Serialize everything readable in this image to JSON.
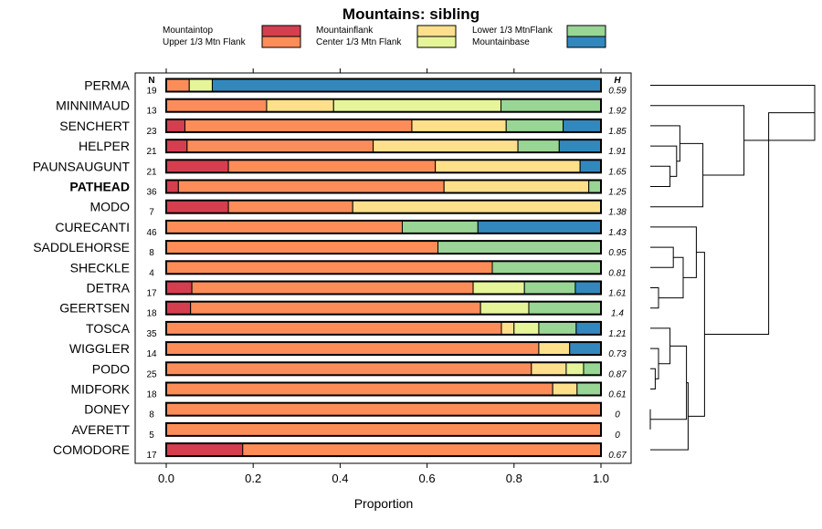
{
  "chart_data": {
    "type": "bar",
    "subtype": "stacked-horizontal-proportion",
    "title": "Mountains: sibling",
    "xlabel": "Proportion",
    "ylabel": "",
    "xlim": [
      0,
      1
    ],
    "xticks": [
      0.0,
      0.2,
      0.4,
      0.6,
      0.8,
      1.0
    ],
    "xtick_labels": [
      "0.0",
      "0.2",
      "0.4",
      "0.6",
      "0.8",
      "1.0"
    ],
    "n_header": "N",
    "h_header": "H",
    "legend": [
      {
        "name": "Mountaintop",
        "color": "#D53E4F"
      },
      {
        "name": "Upper 1/3 Mtn Flank",
        "color": "#FC8D59"
      },
      {
        "name": "Mountainflank",
        "color": "#FEE08B"
      },
      {
        "name": "Center 1/3 Mtn Flank",
        "color": "#E6F598"
      },
      {
        "name": "Lower 1/3 MtnFlank",
        "color": "#99D594"
      },
      {
        "name": "Mountainbase",
        "color": "#3288BD"
      }
    ],
    "categories": [
      "PERMA",
      "MINNIMAUD",
      "SENCHERT",
      "HELPER",
      "PAUNSAUGUNT",
      "PATHEAD",
      "MODO",
      "CURECANTI",
      "SADDLEHORSE",
      "SHECKLE",
      "DETRA",
      "GEERTSEN",
      "TOSCA",
      "WIGGLER",
      "PODO",
      "MIDFORK",
      "DONEY",
      "AVERETT",
      "COMODORE"
    ],
    "highlight": "PATHEAD",
    "n": [
      19,
      13,
      23,
      21,
      21,
      36,
      7,
      46,
      8,
      4,
      17,
      18,
      35,
      14,
      25,
      18,
      8,
      5,
      17
    ],
    "h": [
      "0.59",
      "1.92",
      "1.85",
      "1.91",
      "1.65",
      "1.25",
      "1.38",
      "1.43",
      "0.95",
      "0.81",
      "1.61",
      "1.4",
      "1.21",
      "0.73",
      "0.87",
      "0.61",
      "0",
      "0",
      "0.67"
    ],
    "series": [
      {
        "name": "Mountaintop",
        "values": [
          0,
          0,
          0.043,
          0.048,
          0.143,
          0.028,
          0.143,
          0,
          0,
          0,
          0.059,
          0.056,
          0,
          0,
          0,
          0,
          0,
          0,
          0.176
        ]
      },
      {
        "name": "Upper 1/3 Mtn Flank",
        "values": [
          0.053,
          0.231,
          0.522,
          0.428,
          0.476,
          0.611,
          0.286,
          0.543,
          0.625,
          0.75,
          0.647,
          0.667,
          0.771,
          0.857,
          0.84,
          0.889,
          1.0,
          1.0,
          0.824
        ]
      },
      {
        "name": "Mountainflank",
        "values": [
          0,
          0.154,
          0.217,
          0.333,
          0.333,
          0.333,
          0.571,
          0,
          0,
          0,
          0,
          0,
          0.029,
          0.071,
          0.08,
          0.056,
          0,
          0,
          0
        ]
      },
      {
        "name": "Center 1/3 Mtn Flank",
        "values": [
          0.053,
          0.385,
          0,
          0,
          0,
          0,
          0,
          0,
          0,
          0,
          0.118,
          0.111,
          0.057,
          0,
          0.04,
          0,
          0,
          0,
          0
        ]
      },
      {
        "name": "Lower 1/3 MtnFlank",
        "values": [
          0,
          0.23,
          0.131,
          0.095,
          0,
          0.028,
          0,
          0.174,
          0.375,
          0.25,
          0.117,
          0.166,
          0.086,
          0,
          0.04,
          0.055,
          0,
          0,
          0
        ]
      },
      {
        "name": "Mountainbase",
        "values": [
          0.894,
          0,
          0.087,
          0.096,
          0.048,
          0,
          0,
          0.283,
          0,
          0,
          0.059,
          0,
          0.057,
          0.072,
          0,
          0,
          0,
          0,
          0
        ]
      }
    ],
    "dendrogram": {
      "description": "hierarchical clustering of rows",
      "merges": [
        {
          "members": [
            "PAUNSAUGUNT",
            "PATHEAD"
          ],
          "height": 0.02
        },
        {
          "members": [
            "HELPER",
            "cluster(PAUNSAUGUNT,PATHEAD)"
          ],
          "height": 0.04
        },
        {
          "members": [
            "SENCHERT",
            "cluster(HELPER,...)"
          ],
          "height": 0.06
        },
        {
          "members": [
            "cluster(SENCHERT,...)",
            "MODO"
          ],
          "height": 0.2
        },
        {
          "members": [
            "MINNIMAUD",
            "cluster(SENCHERT,...,MODO)"
          ],
          "height": 0.32
        },
        {
          "members": [
            "PERMA",
            "cluster(MINNIMAUD,...)"
          ],
          "height": 0.85
        },
        {
          "members": [
            "SADDLEHORSE",
            "SHECKLE"
          ],
          "height": 0.08
        },
        {
          "members": [
            "DETRA",
            "GEERTSEN"
          ],
          "height": 0.07
        },
        {
          "members": [
            "cluster(SADDLEHORSE,SHECKLE)",
            "cluster(DETRA,GEERTSEN)"
          ],
          "height": 0.14
        },
        {
          "members": [
            "CURECANTI",
            "cluster(SADDLEHORSE,...)"
          ],
          "height": 0.28
        },
        {
          "members": [
            "PODO",
            "MIDFORK"
          ],
          "height": 0.03
        },
        {
          "members": [
            "WIGGLER",
            "cluster(PODO,MIDFORK)"
          ],
          "height": 0.05
        },
        {
          "members": [
            "TOSCA",
            "cluster(WIGGLER,...)"
          ],
          "height": 0.12
        },
        {
          "members": [
            "DONEY",
            "AVERETT"
          ],
          "height": 0.0
        },
        {
          "members": [
            "cluster(TOSCA,...)",
            "cluster(DONEY,AVERETT)"
          ],
          "height": 0.16
        },
        {
          "members": [
            "cluster(TOSCA,...,AVERETT)",
            "COMODORE"
          ],
          "height": 0.25
        },
        {
          "members": [
            "cluster(CURECANTI,...)",
            "cluster(TOSCA,...,COMODORE)"
          ],
          "height": 0.33
        },
        {
          "members": [
            "cluster(PERMA,...)",
            "cluster(CURECANTI,...)"
          ],
          "height": 1.0
        }
      ]
    }
  }
}
